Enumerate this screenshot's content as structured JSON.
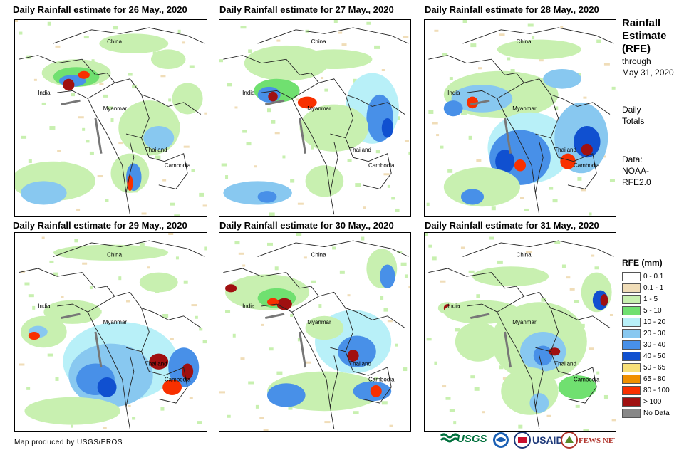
{
  "panels": [
    {
      "title": "Daily Rainfall estimate for 26 May., 2020"
    },
    {
      "title": "Daily Rainfall estimate for 27 May., 2020"
    },
    {
      "title": "Daily Rainfall estimate for 28 May., 2020"
    },
    {
      "title": "Daily Rainfall estimate for 29 May., 2020"
    },
    {
      "title": "Daily Rainfall estimate for 30 May., 2020"
    },
    {
      "title": "Daily Rainfall estimate for 31 May., 2020"
    }
  ],
  "place_labels": {
    "china": "China",
    "india": "India",
    "myanmar": "Myanmar",
    "thailand": "Thailand",
    "cambodia": "Cambodia"
  },
  "sidebar": {
    "title_line1": "Rainfall",
    "title_line2": "Estimate",
    "title_line3": "(RFE)",
    "through_label": "through",
    "through_date": "May 31, 2020",
    "daily_line1": "Daily",
    "daily_line2": "Totals",
    "data_line1": "Data:",
    "data_line2": "NOAA-",
    "data_line3": "RFE2.0"
  },
  "legend": {
    "title": "RFE (mm)",
    "items": [
      {
        "label": "0 - 0.1",
        "color": "#ffffff"
      },
      {
        "label": "0.1 - 1",
        "color": "#f0ddb8"
      },
      {
        "label": "1 - 5",
        "color": "#c8f0b0"
      },
      {
        "label": "5 - 10",
        "color": "#70e070"
      },
      {
        "label": "10 - 20",
        "color": "#b8f0f8"
      },
      {
        "label": "20 - 30",
        "color": "#88c8f0"
      },
      {
        "label": "30 - 40",
        "color": "#4890e8"
      },
      {
        "label": "40 - 50",
        "color": "#1050d0"
      },
      {
        "label": "50 - 65",
        "color": "#f8e078"
      },
      {
        "label": "65 - 80",
        "color": "#f09000"
      },
      {
        "label": "80 - 100",
        "color": "#f83000"
      },
      {
        "label": "> 100",
        "color": "#a01010"
      },
      {
        "label": "No Data",
        "color": "#888888"
      }
    ]
  },
  "credit": "Map produced by USGS/EROS",
  "logos": {
    "usgs": "USGS",
    "usaid": "USAID",
    "fewsnet": "FEWS NET"
  }
}
